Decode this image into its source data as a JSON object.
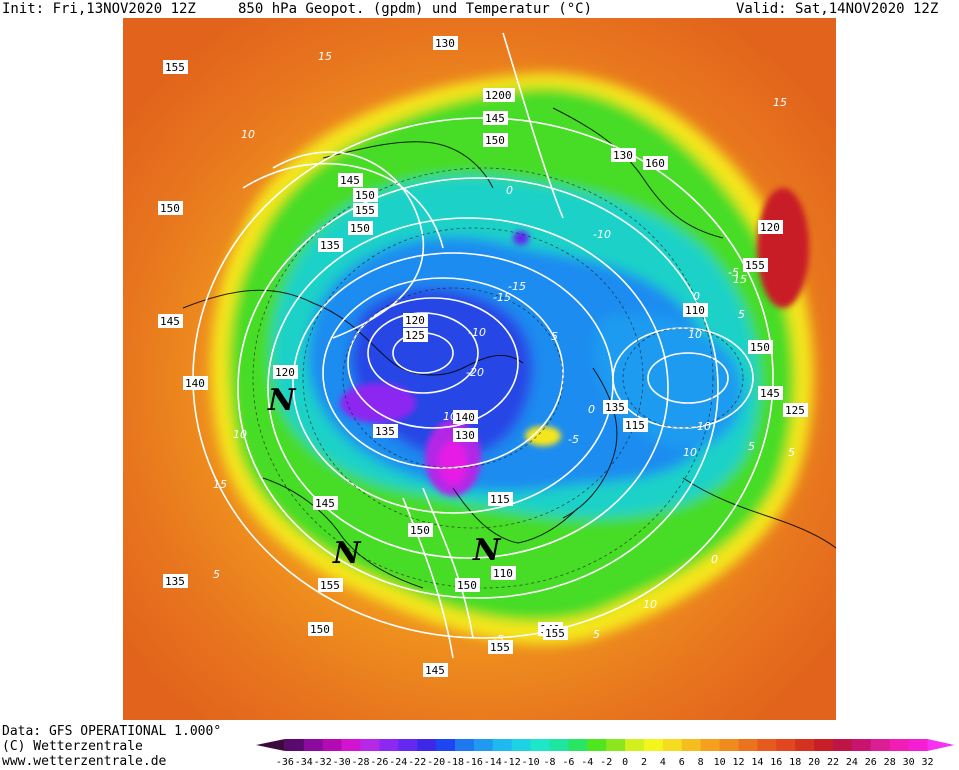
{
  "header": {
    "init": "Init: Fri,13NOV2020 12Z",
    "title": "850 hPa Geopot. (gpdm) und Temperatur (°C)",
    "valid": "Valid: Sat,14NOV2020 12Z"
  },
  "footer": {
    "data_source": "Data: GFS OPERATIONAL 1.000°",
    "copyright": "(C) Wetterzentrale",
    "website": "www.wetterzentrale.de"
  },
  "colorbar": {
    "labels": [
      "-36",
      "-34",
      "-32",
      "-30",
      "-28",
      "-26",
      "-24",
      "-22",
      "-20",
      "-18",
      "-16",
      "-14",
      "-12",
      "-10",
      "-8",
      "-6",
      "-4",
      "-2",
      "0",
      "2",
      "4",
      "6",
      "8",
      "10",
      "12",
      "14",
      "16",
      "18",
      "20",
      "22",
      "24",
      "26",
      "28",
      "30",
      "32"
    ],
    "colors": [
      "#3c0a3c",
      "#5a0a6e",
      "#8c0aa0",
      "#b40ab4",
      "#d214d2",
      "#b428e6",
      "#8c28f0",
      "#6428f0",
      "#3c28e6",
      "#1e46f0",
      "#1e78f0",
      "#1e9bf0",
      "#1eb9f0",
      "#1ed2e6",
      "#1ee6c8",
      "#1ee6a0",
      "#28e664",
      "#50e61e",
      "#8ce61e",
      "#d2f01e",
      "#f5f51e",
      "#f5dc1e",
      "#f5be1e",
      "#f5a01e",
      "#f08c1e",
      "#eb731e",
      "#e65a1e",
      "#e1461e",
      "#d2321e",
      "#c81e28",
      "#be1446",
      "#c8146e",
      "#dc1e96",
      "#f01eb4",
      "#f51ed2",
      "#f532f0"
    ]
  },
  "map": {
    "height_labels": [
      "155",
      "150",
      "145",
      "140",
      "135",
      "155",
      "150",
      "145",
      "140",
      "135",
      "130",
      "160",
      "155",
      "150",
      "145",
      "125",
      "120",
      "110",
      "115",
      "130",
      "1200",
      "145",
      "150",
      "145",
      "150",
      "155",
      "150",
      "135",
      "120",
      "120",
      "125",
      "130",
      "135",
      "140",
      "145",
      "115",
      "150",
      "155",
      "110",
      "150",
      "155"
    ],
    "temperature_labels": [
      "15",
      "10",
      "10",
      "15",
      "5",
      "-10",
      "-15",
      "-20",
      "10",
      "5",
      "0",
      "-5",
      "-15",
      "15",
      "5",
      "0",
      "-5",
      "-10",
      "10",
      "5",
      "0",
      "-5",
      "10",
      "5",
      "0",
      "-10",
      "15",
      "10",
      "5"
    ],
    "low_symbol": "N"
  }
}
